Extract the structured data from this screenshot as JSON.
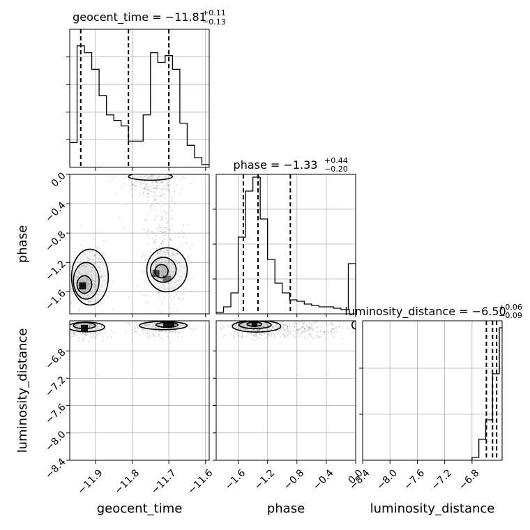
{
  "chart_data": {
    "type": "corner",
    "grid": true,
    "parameters": [
      {
        "name": "geocent_time",
        "xlabel": "geocent_time",
        "range": [
          -11.97,
          -11.59
        ],
        "ticks": [
          -11.9,
          -11.8,
          -11.7,
          -11.6
        ],
        "tick_labels": [
          "−11.9",
          "−11.8",
          "−11.7",
          "−11.6"
        ],
        "title_main": "geocent_time = −11.81",
        "title_plus": "+0.11",
        "title_minus": "−0.13",
        "median": -11.81,
        "plus": 0.11,
        "minus": 0.13,
        "hist_bins": [
          -11.97,
          -11.95,
          -11.93,
          -11.91,
          -11.89,
          -11.87,
          -11.85,
          -11.83,
          -11.81,
          -11.79,
          -11.77,
          -11.75,
          -11.73,
          -11.71,
          -11.69,
          -11.67,
          -11.65,
          -11.63,
          -11.61,
          -11.59
        ],
        "hist_counts": [
          0.18,
          0.88,
          0.83,
          0.71,
          0.52,
          0.38,
          0.34,
          0.3,
          0.19,
          0.19,
          0.38,
          0.83,
          0.76,
          0.81,
          0.71,
          0.32,
          0.16,
          0.07,
          0.02
        ]
      },
      {
        "name": "phase",
        "ylabel": "phase",
        "xlabel": "phase",
        "range": [
          -1.9,
          0.0
        ],
        "ticks": [
          -1.6,
          -1.2,
          -0.8,
          -0.4,
          0.0
        ],
        "tick_labels": [
          "−1.6",
          "−1.2",
          "−0.8",
          "−0.4",
          "0.0"
        ],
        "title_main": "phase = −1.33",
        "title_plus": "+0.44",
        "title_minus": "−0.20",
        "median": -1.33,
        "plus": 0.44,
        "minus": 0.2,
        "hist_bins": [
          -1.9,
          -1.8,
          -1.7,
          -1.6,
          -1.5,
          -1.4,
          -1.3,
          -1.2,
          -1.1,
          -1.0,
          -0.9,
          -0.8,
          -0.7,
          -0.6,
          -0.5,
          -0.4,
          -0.3,
          -0.2,
          -0.1,
          0.0
        ],
        "hist_counts": [
          0.01,
          0.05,
          0.15,
          0.55,
          0.88,
          0.98,
          0.68,
          0.39,
          0.22,
          0.15,
          0.1,
          0.09,
          0.07,
          0.06,
          0.05,
          0.05,
          0.04,
          0.03,
          0.36
        ]
      },
      {
        "name": "luminosity_distance",
        "ylabel": "luminosity_distance",
        "xlabel": "luminosity_distance",
        "range": [
          -8.4,
          -6.36
        ],
        "ticks": [
          -8.4,
          -8.0,
          -7.6,
          -7.2,
          -6.8
        ],
        "tick_labels": [
          "−8.4",
          "−8.0",
          "−7.6",
          "−7.2",
          "−6.8"
        ],
        "title_main": "luminosity_distance = −6.50",
        "title_plus": "+0.06",
        "title_minus": "−0.09",
        "median": -6.5,
        "plus": 0.06,
        "minus": 0.09,
        "hist_bins": [
          -8.4,
          -8.3,
          -8.2,
          -8.1,
          -8.0,
          -7.9,
          -7.8,
          -7.7,
          -7.6,
          -7.5,
          -7.4,
          -7.3,
          -7.2,
          -7.1,
          -7.0,
          -6.9,
          -6.8,
          -6.7,
          -6.6,
          -6.5,
          -6.4,
          -6.36
        ],
        "hist_counts": [
          0,
          0,
          0,
          0,
          0,
          0,
          0,
          0,
          0,
          0,
          0,
          0,
          0,
          0,
          0,
          0,
          0.02,
          0.15,
          0.29,
          0.62,
          0.95,
          0.95
        ]
      }
    ],
    "point_color": "#000000",
    "contour_color": "#000000",
    "quantile_line_style": "dashed"
  }
}
